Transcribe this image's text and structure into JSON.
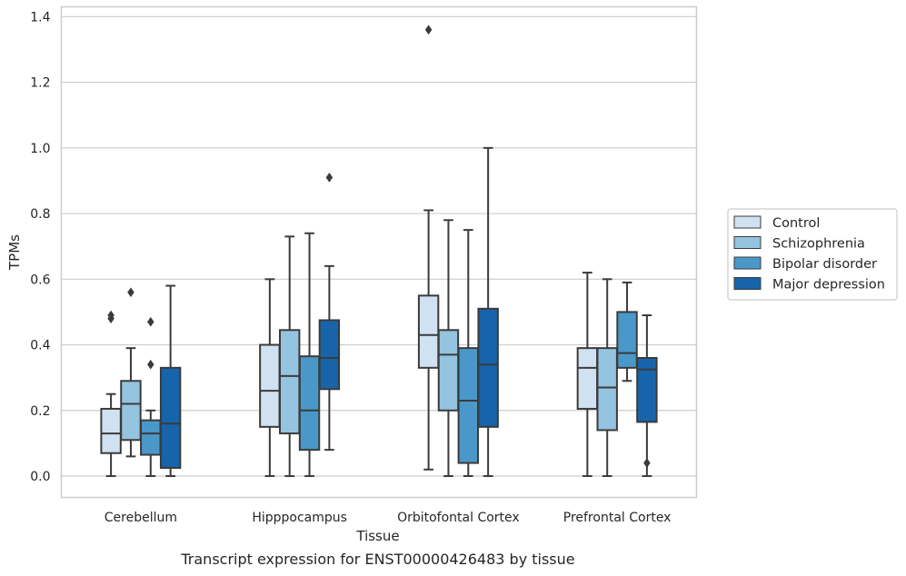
{
  "caption": "Transcript expression for ENST00000426483 by tissue",
  "chart_data": {
    "type": "box",
    "xlabel": "Tissue",
    "ylabel": "TPMs",
    "ylim": [
      -0.065,
      1.43
    ],
    "yticks": [
      "0.0",
      "0.2",
      "0.4",
      "0.6",
      "0.8",
      "1.0",
      "1.2",
      "1.4"
    ],
    "ytick_values": [
      0.0,
      0.2,
      0.4,
      0.6,
      0.8,
      1.0,
      1.2,
      1.4
    ],
    "grid": true,
    "legend_position": "right",
    "categories": [
      "Cerebellum",
      "Hipppocampus",
      "Orbitofontal Cortex",
      "Prefrontal Cortex"
    ],
    "series": [
      {
        "name": "Control",
        "color": "#d0e1f2",
        "boxes": [
          {
            "whislo": 0.0,
            "q1": 0.07,
            "med": 0.13,
            "q3": 0.205,
            "whishi": 0.25,
            "fliers": [
              0.48,
              0.49
            ]
          },
          {
            "whislo": 0.0,
            "q1": 0.15,
            "med": 0.26,
            "q3": 0.4,
            "whishi": 0.6,
            "fliers": []
          },
          {
            "whislo": 0.02,
            "q1": 0.33,
            "med": 0.43,
            "q3": 0.55,
            "whishi": 0.81,
            "fliers": [
              1.36
            ]
          },
          {
            "whislo": 0.0,
            "q1": 0.205,
            "med": 0.33,
            "q3": 0.39,
            "whishi": 0.62,
            "fliers": []
          }
        ]
      },
      {
        "name": "Schizophrenia",
        "color": "#94c4df",
        "boxes": [
          {
            "whislo": 0.06,
            "q1": 0.11,
            "med": 0.22,
            "q3": 0.29,
            "whishi": 0.39,
            "fliers": [
              0.56
            ]
          },
          {
            "whislo": 0.0,
            "q1": 0.13,
            "med": 0.305,
            "q3": 0.445,
            "whishi": 0.73,
            "fliers": []
          },
          {
            "whislo": 0.0,
            "q1": 0.2,
            "med": 0.37,
            "q3": 0.445,
            "whishi": 0.78,
            "fliers": []
          },
          {
            "whislo": 0.0,
            "q1": 0.14,
            "med": 0.27,
            "q3": 0.39,
            "whishi": 0.6,
            "fliers": []
          }
        ]
      },
      {
        "name": "Bipolar disorder",
        "color": "#4a98c9",
        "boxes": [
          {
            "whislo": 0.0,
            "q1": 0.065,
            "med": 0.13,
            "q3": 0.17,
            "whishi": 0.2,
            "fliers": [
              0.34,
              0.47
            ]
          },
          {
            "whislo": 0.0,
            "q1": 0.08,
            "med": 0.2,
            "q3": 0.365,
            "whishi": 0.74,
            "fliers": []
          },
          {
            "whislo": 0.0,
            "q1": 0.04,
            "med": 0.23,
            "q3": 0.39,
            "whishi": 0.75,
            "fliers": []
          },
          {
            "whislo": 0.29,
            "q1": 0.33,
            "med": 0.375,
            "q3": 0.5,
            "whishi": 0.59,
            "fliers": []
          }
        ]
      },
      {
        "name": "Major depression",
        "color": "#1764ab",
        "boxes": [
          {
            "whislo": 0.0,
            "q1": 0.025,
            "med": 0.16,
            "q3": 0.33,
            "whishi": 0.58,
            "fliers": []
          },
          {
            "whislo": 0.08,
            "q1": 0.265,
            "med": 0.36,
            "q3": 0.475,
            "whishi": 0.64,
            "fliers": [
              0.91
            ]
          },
          {
            "whislo": 0.0,
            "q1": 0.15,
            "med": 0.34,
            "q3": 0.51,
            "whishi": 1.0,
            "fliers": []
          },
          {
            "whislo": 0.0,
            "q1": 0.165,
            "med": 0.325,
            "q3": 0.36,
            "whishi": 0.49,
            "fliers": [
              0.04
            ]
          }
        ]
      }
    ]
  }
}
